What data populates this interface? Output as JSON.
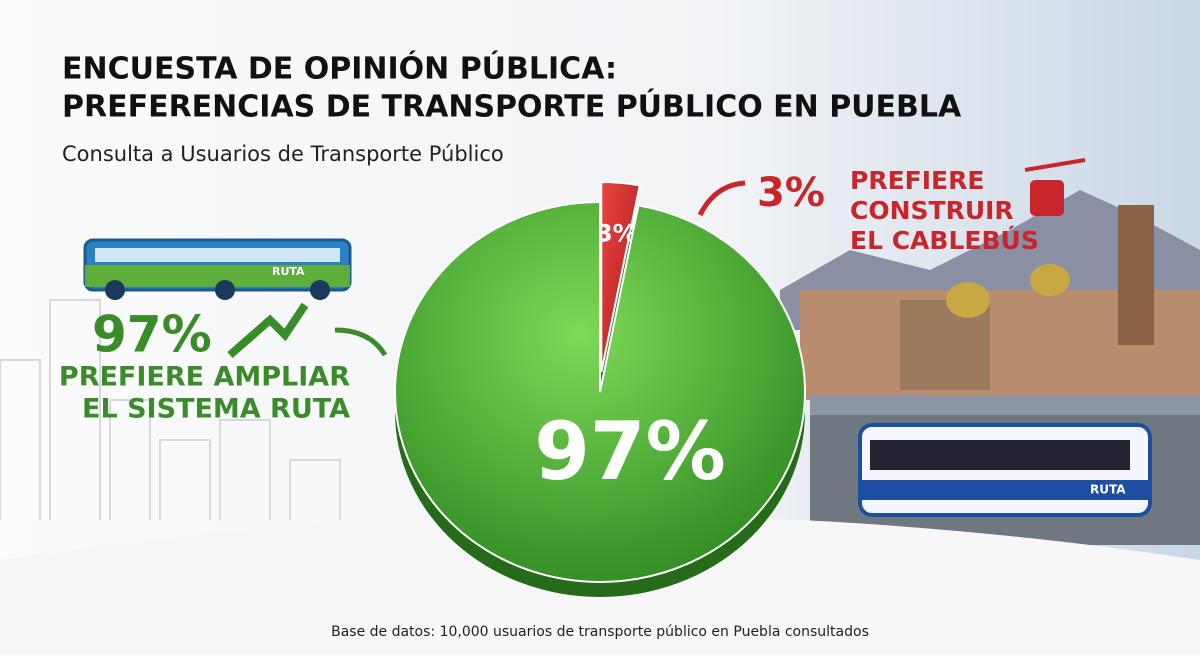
{
  "chart_data": {
    "type": "pie",
    "title_lines": [
      "ENCUESTA DE OPINIÓN PÚBLICA:",
      "PREFERENCIAS DE TRANSPORTE PÚBLICO EN PUEBLA"
    ],
    "subtitle": "Consulta a Usuarios de Transporte Público",
    "categories": [
      [
        "PREFIERE AMPLIAR",
        "EL SISTEMA RUTA"
      ],
      [
        "PREFIERE",
        "CONSTRUIR",
        "EL CABLEBÚS"
      ]
    ],
    "values": [
      97,
      3
    ],
    "value_labels": [
      "97%",
      "3%"
    ],
    "colors": [
      "#3f9e2e",
      "#c8262a"
    ],
    "bus_label": "RUTA",
    "source": "Base de datos: 10,000 usuarios de transporte público en Puebla consultados"
  }
}
